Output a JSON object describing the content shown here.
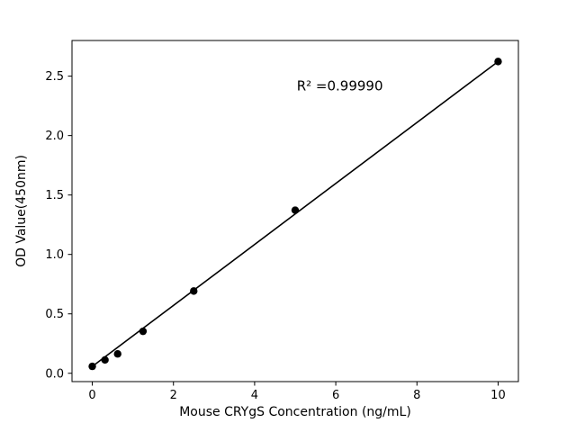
{
  "figure": {
    "background": "#ffffff"
  },
  "chart_data": {
    "type": "scatter",
    "title": "",
    "xlabel": "Mouse CRYgS Concentration (ng/mL)",
    "ylabel": "OD Value(450nm)",
    "x": [
      0,
      0.3125,
      0.625,
      1.25,
      2.5,
      5,
      10
    ],
    "y": [
      0.058,
      0.112,
      0.163,
      0.353,
      0.692,
      1.372,
      2.623
    ],
    "fit": {
      "type": "linear",
      "slope": 0.2565,
      "intercept": 0.058
    },
    "annotation": {
      "text": "R² =0.99990",
      "x": 6.1,
      "y": 2.38
    },
    "xlim": [
      -0.5,
      10.5
    ],
    "ylim": [
      -0.07,
      2.8
    ],
    "xticks": [
      0,
      2,
      4,
      6,
      8,
      10
    ],
    "xtick_labels": [
      "0",
      "2",
      "4",
      "6",
      "8",
      "10"
    ],
    "yticks": [
      0.0,
      0.5,
      1.0,
      1.5,
      2.0,
      2.5
    ],
    "ytick_labels": [
      "0.0",
      "0.5",
      "1.0",
      "1.5",
      "2.0",
      "2.5"
    ],
    "grid": false,
    "legend": false,
    "point_color": "#000000",
    "line_color": "#000000",
    "frame_color": "#000000",
    "marker_radius": 4.2,
    "line_width": 1.6
  }
}
